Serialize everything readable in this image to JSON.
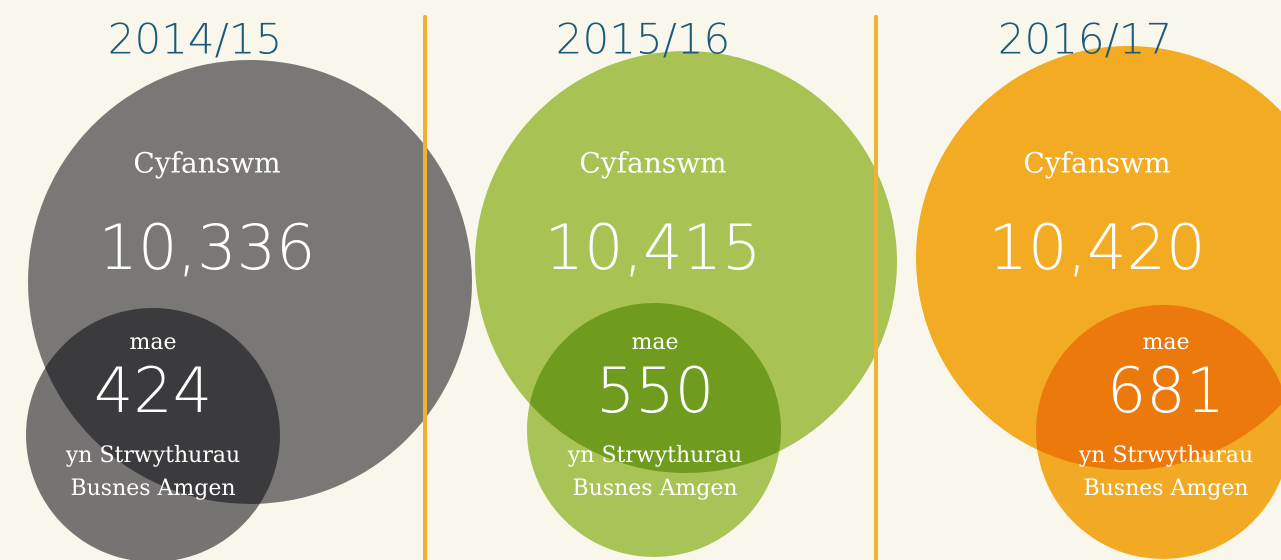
{
  "panels": [
    {
      "year": "2014/15",
      "total_label": "Cyfanswm",
      "total": "10,336",
      "sub_prefix": "mae",
      "sub_value": "424",
      "sub_suffix": [
        "yn Strwythurau",
        "Busnes Amgen"
      ]
    },
    {
      "year": "2015/16",
      "total_label": "Cyfanswm",
      "total": "10,415",
      "sub_prefix": "mae",
      "sub_value": "550",
      "sub_suffix": [
        "yn Strwythurau",
        "Busnes Amgen"
      ]
    },
    {
      "year": "2016/17",
      "total_label": "Cyfanswm",
      "total": "10,420",
      "sub_prefix": "mae",
      "sub_value": "681",
      "sub_suffix": [
        "yn Strwythurau",
        "Busnes Amgen"
      ]
    }
  ]
}
